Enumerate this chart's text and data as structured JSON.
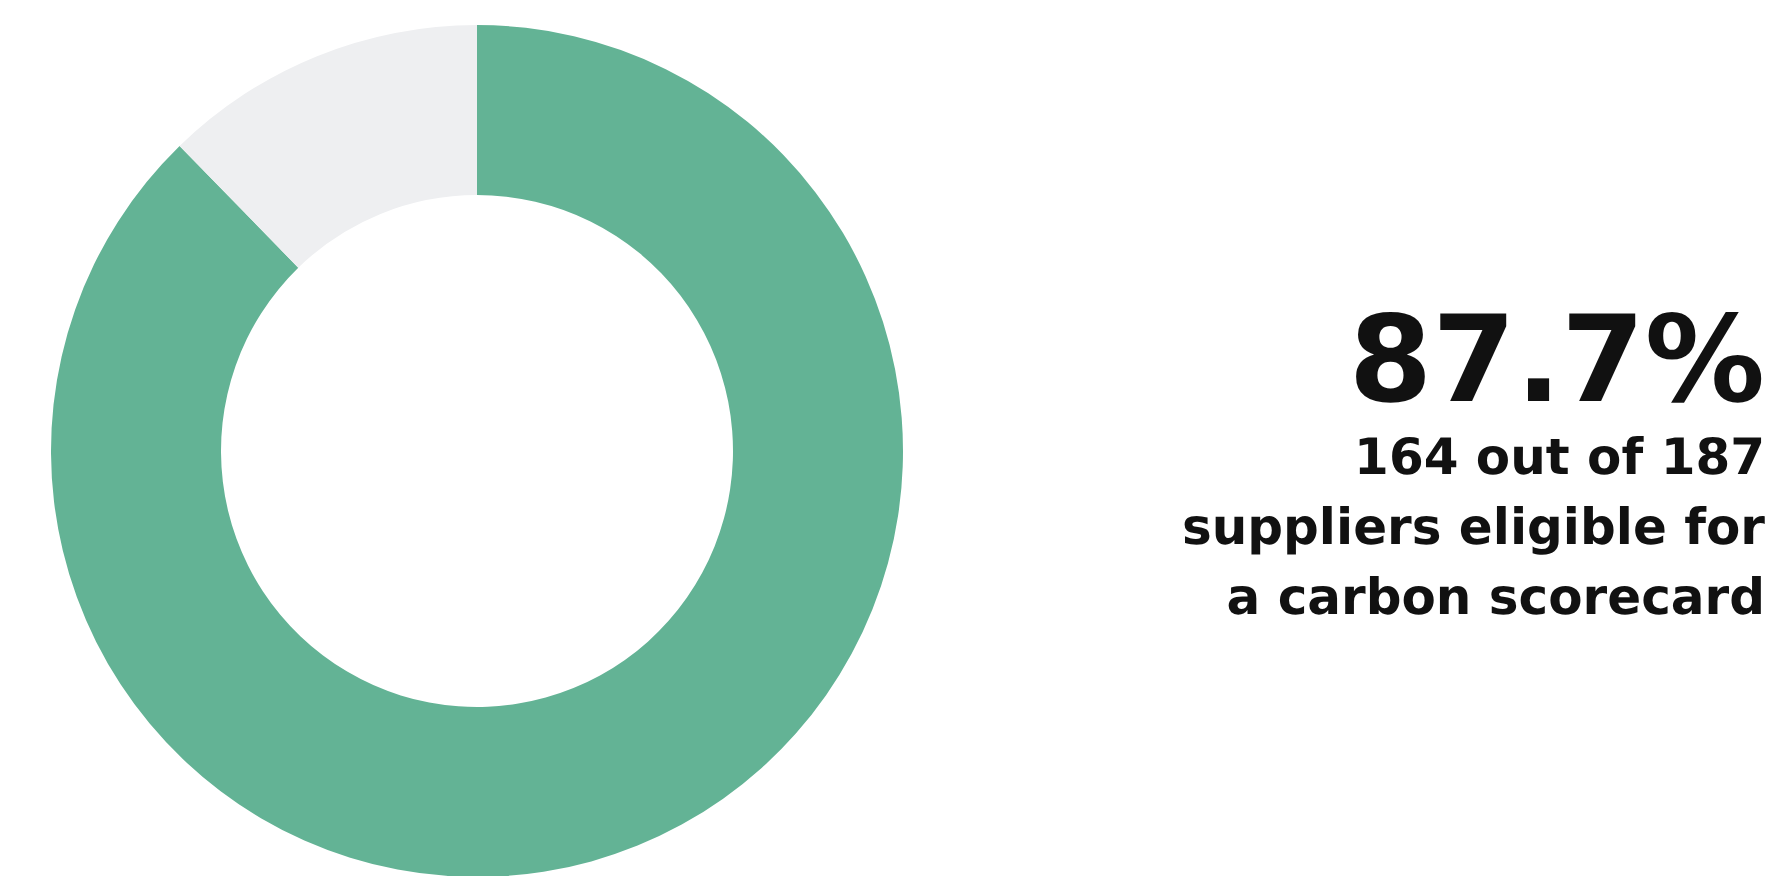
{
  "chart_data": {
    "type": "donut",
    "categories": [
      null,
      null
    ],
    "values": [
      87.7,
      12.3
    ],
    "colors": [
      "#63b395",
      "#eeeff1"
    ],
    "annotations": [
      "87.7%",
      "164 out of 187 suppliers eligible for a carbon scorecard"
    ]
  }
}
